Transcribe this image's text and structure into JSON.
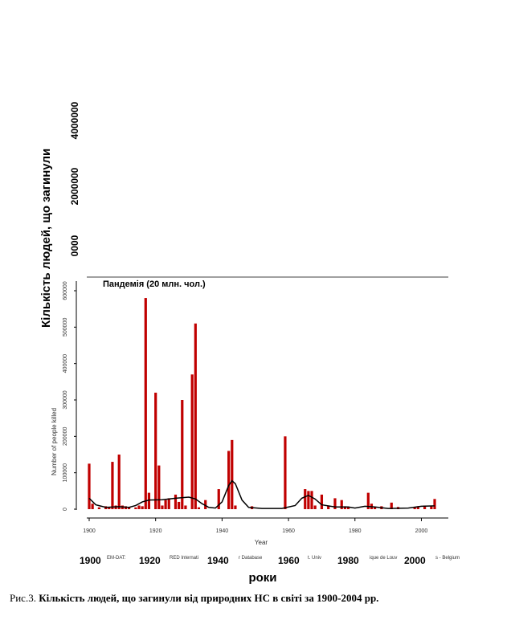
{
  "outer_axes": {
    "ylabel": "Кількість людей, що загинули",
    "y_tick_labels": [
      "4000000",
      "2000000",
      "0000"
    ],
    "xlabel": "роки",
    "x_tick_labels": [
      "1900",
      "1920",
      "1940",
      "1960",
      "1980",
      "2000"
    ]
  },
  "inner_axes": {
    "annotation": "Пандемія (20 млн. чол.)",
    "ylabel": "Number of people killed",
    "xlabel": "Year",
    "y_tick_labels": [
      "0",
      "100000",
      "200000",
      "300000",
      "400000",
      "500000",
      "600000"
    ],
    "x_tick_labels": [
      "1900",
      "1920",
      "1940",
      "1960",
      "1980",
      "2000"
    ],
    "source_fragments": [
      "EM-DAT:",
      "RED Internati",
      "r Database",
      "t. Univ",
      "ique de Louv",
      "s - Belgium"
    ]
  },
  "caption": {
    "prefix": "Рис.3.",
    "text": "Кількість людей, що загинули від природних НС в світі за 1900-2004 рр."
  },
  "chart_data": {
    "type": "bar",
    "title": "",
    "xlabel": "Year",
    "ylabel": "Number of people killed",
    "xlim": [
      1897,
      2007
    ],
    "ylim": [
      0,
      620000
    ],
    "bar_color": "#c00000",
    "trend_color": "#000000",
    "annotation": "Пандемія (20 млн. чол.)",
    "bars": [
      {
        "x": 1900,
        "y": 125000
      },
      {
        "x": 1901,
        "y": 15000
      },
      {
        "x": 1903,
        "y": 5000
      },
      {
        "x": 1905,
        "y": 8000
      },
      {
        "x": 1906,
        "y": 5000
      },
      {
        "x": 1907,
        "y": 130000
      },
      {
        "x": 1908,
        "y": 10000
      },
      {
        "x": 1909,
        "y": 150000
      },
      {
        "x": 1910,
        "y": 10000
      },
      {
        "x": 1911,
        "y": 8000
      },
      {
        "x": 1912,
        "y": 5000
      },
      {
        "x": 1914,
        "y": 5000
      },
      {
        "x": 1915,
        "y": 10000
      },
      {
        "x": 1916,
        "y": 8000
      },
      {
        "x": 1917,
        "y": 580000
      },
      {
        "x": 1918,
        "y": 45000
      },
      {
        "x": 1920,
        "y": 320000
      },
      {
        "x": 1921,
        "y": 120000
      },
      {
        "x": 1922,
        "y": 10000
      },
      {
        "x": 1923,
        "y": 25000
      },
      {
        "x": 1924,
        "y": 30000
      },
      {
        "x": 1926,
        "y": 40000
      },
      {
        "x": 1927,
        "y": 20000
      },
      {
        "x": 1928,
        "y": 300000
      },
      {
        "x": 1929,
        "y": 10000
      },
      {
        "x": 1931,
        "y": 370000
      },
      {
        "x": 1932,
        "y": 510000
      },
      {
        "x": 1933,
        "y": 5000
      },
      {
        "x": 1935,
        "y": 25000
      },
      {
        "x": 1939,
        "y": 55000
      },
      {
        "x": 1942,
        "y": 160000
      },
      {
        "x": 1943,
        "y": 190000
      },
      {
        "x": 1944,
        "y": 10000
      },
      {
        "x": 1949,
        "y": 8000
      },
      {
        "x": 1959,
        "y": 200000
      },
      {
        "x": 1965,
        "y": 55000
      },
      {
        "x": 1966,
        "y": 50000
      },
      {
        "x": 1967,
        "y": 50000
      },
      {
        "x": 1968,
        "y": 10000
      },
      {
        "x": 1970,
        "y": 40000
      },
      {
        "x": 1972,
        "y": 10000
      },
      {
        "x": 1974,
        "y": 30000
      },
      {
        "x": 1976,
        "y": 25000
      },
      {
        "x": 1977,
        "y": 8000
      },
      {
        "x": 1978,
        "y": 5000
      },
      {
        "x": 1984,
        "y": 45000
      },
      {
        "x": 1985,
        "y": 15000
      },
      {
        "x": 1986,
        "y": 5000
      },
      {
        "x": 1988,
        "y": 8000
      },
      {
        "x": 1991,
        "y": 18000
      },
      {
        "x": 1993,
        "y": 6000
      },
      {
        "x": 1998,
        "y": 5000
      },
      {
        "x": 1999,
        "y": 8000
      },
      {
        "x": 2001,
        "y": 10000
      },
      {
        "x": 2003,
        "y": 8000
      },
      {
        "x": 2004,
        "y": 28000
      }
    ],
    "trend": [
      {
        "x": 1900,
        "y": 30000
      },
      {
        "x": 1902,
        "y": 12000
      },
      {
        "x": 1905,
        "y": 5000
      },
      {
        "x": 1909,
        "y": 7000
      },
      {
        "x": 1912,
        "y": 5000
      },
      {
        "x": 1914,
        "y": 10000
      },
      {
        "x": 1916,
        "y": 20000
      },
      {
        "x": 1918,
        "y": 25000
      },
      {
        "x": 1922,
        "y": 26000
      },
      {
        "x": 1926,
        "y": 30000
      },
      {
        "x": 1930,
        "y": 33000
      },
      {
        "x": 1932,
        "y": 28000
      },
      {
        "x": 1934,
        "y": 15000
      },
      {
        "x": 1936,
        "y": 5000
      },
      {
        "x": 1938,
        "y": 3000
      },
      {
        "x": 1940,
        "y": 20000
      },
      {
        "x": 1942,
        "y": 65000
      },
      {
        "x": 1943,
        "y": 78000
      },
      {
        "x": 1944,
        "y": 70000
      },
      {
        "x": 1946,
        "y": 25000
      },
      {
        "x": 1948,
        "y": 5000
      },
      {
        "x": 1952,
        "y": 2000
      },
      {
        "x": 1958,
        "y": 2000
      },
      {
        "x": 1962,
        "y": 10000
      },
      {
        "x": 1964,
        "y": 30000
      },
      {
        "x": 1966,
        "y": 38000
      },
      {
        "x": 1968,
        "y": 28000
      },
      {
        "x": 1970,
        "y": 12000
      },
      {
        "x": 1974,
        "y": 6000
      },
      {
        "x": 1978,
        "y": 6000
      },
      {
        "x": 1980,
        "y": 3000
      },
      {
        "x": 1983,
        "y": 8000
      },
      {
        "x": 1986,
        "y": 6000
      },
      {
        "x": 1990,
        "y": 2000
      },
      {
        "x": 1996,
        "y": 3000
      },
      {
        "x": 2000,
        "y": 8000
      },
      {
        "x": 2004,
        "y": 9000
      }
    ]
  }
}
